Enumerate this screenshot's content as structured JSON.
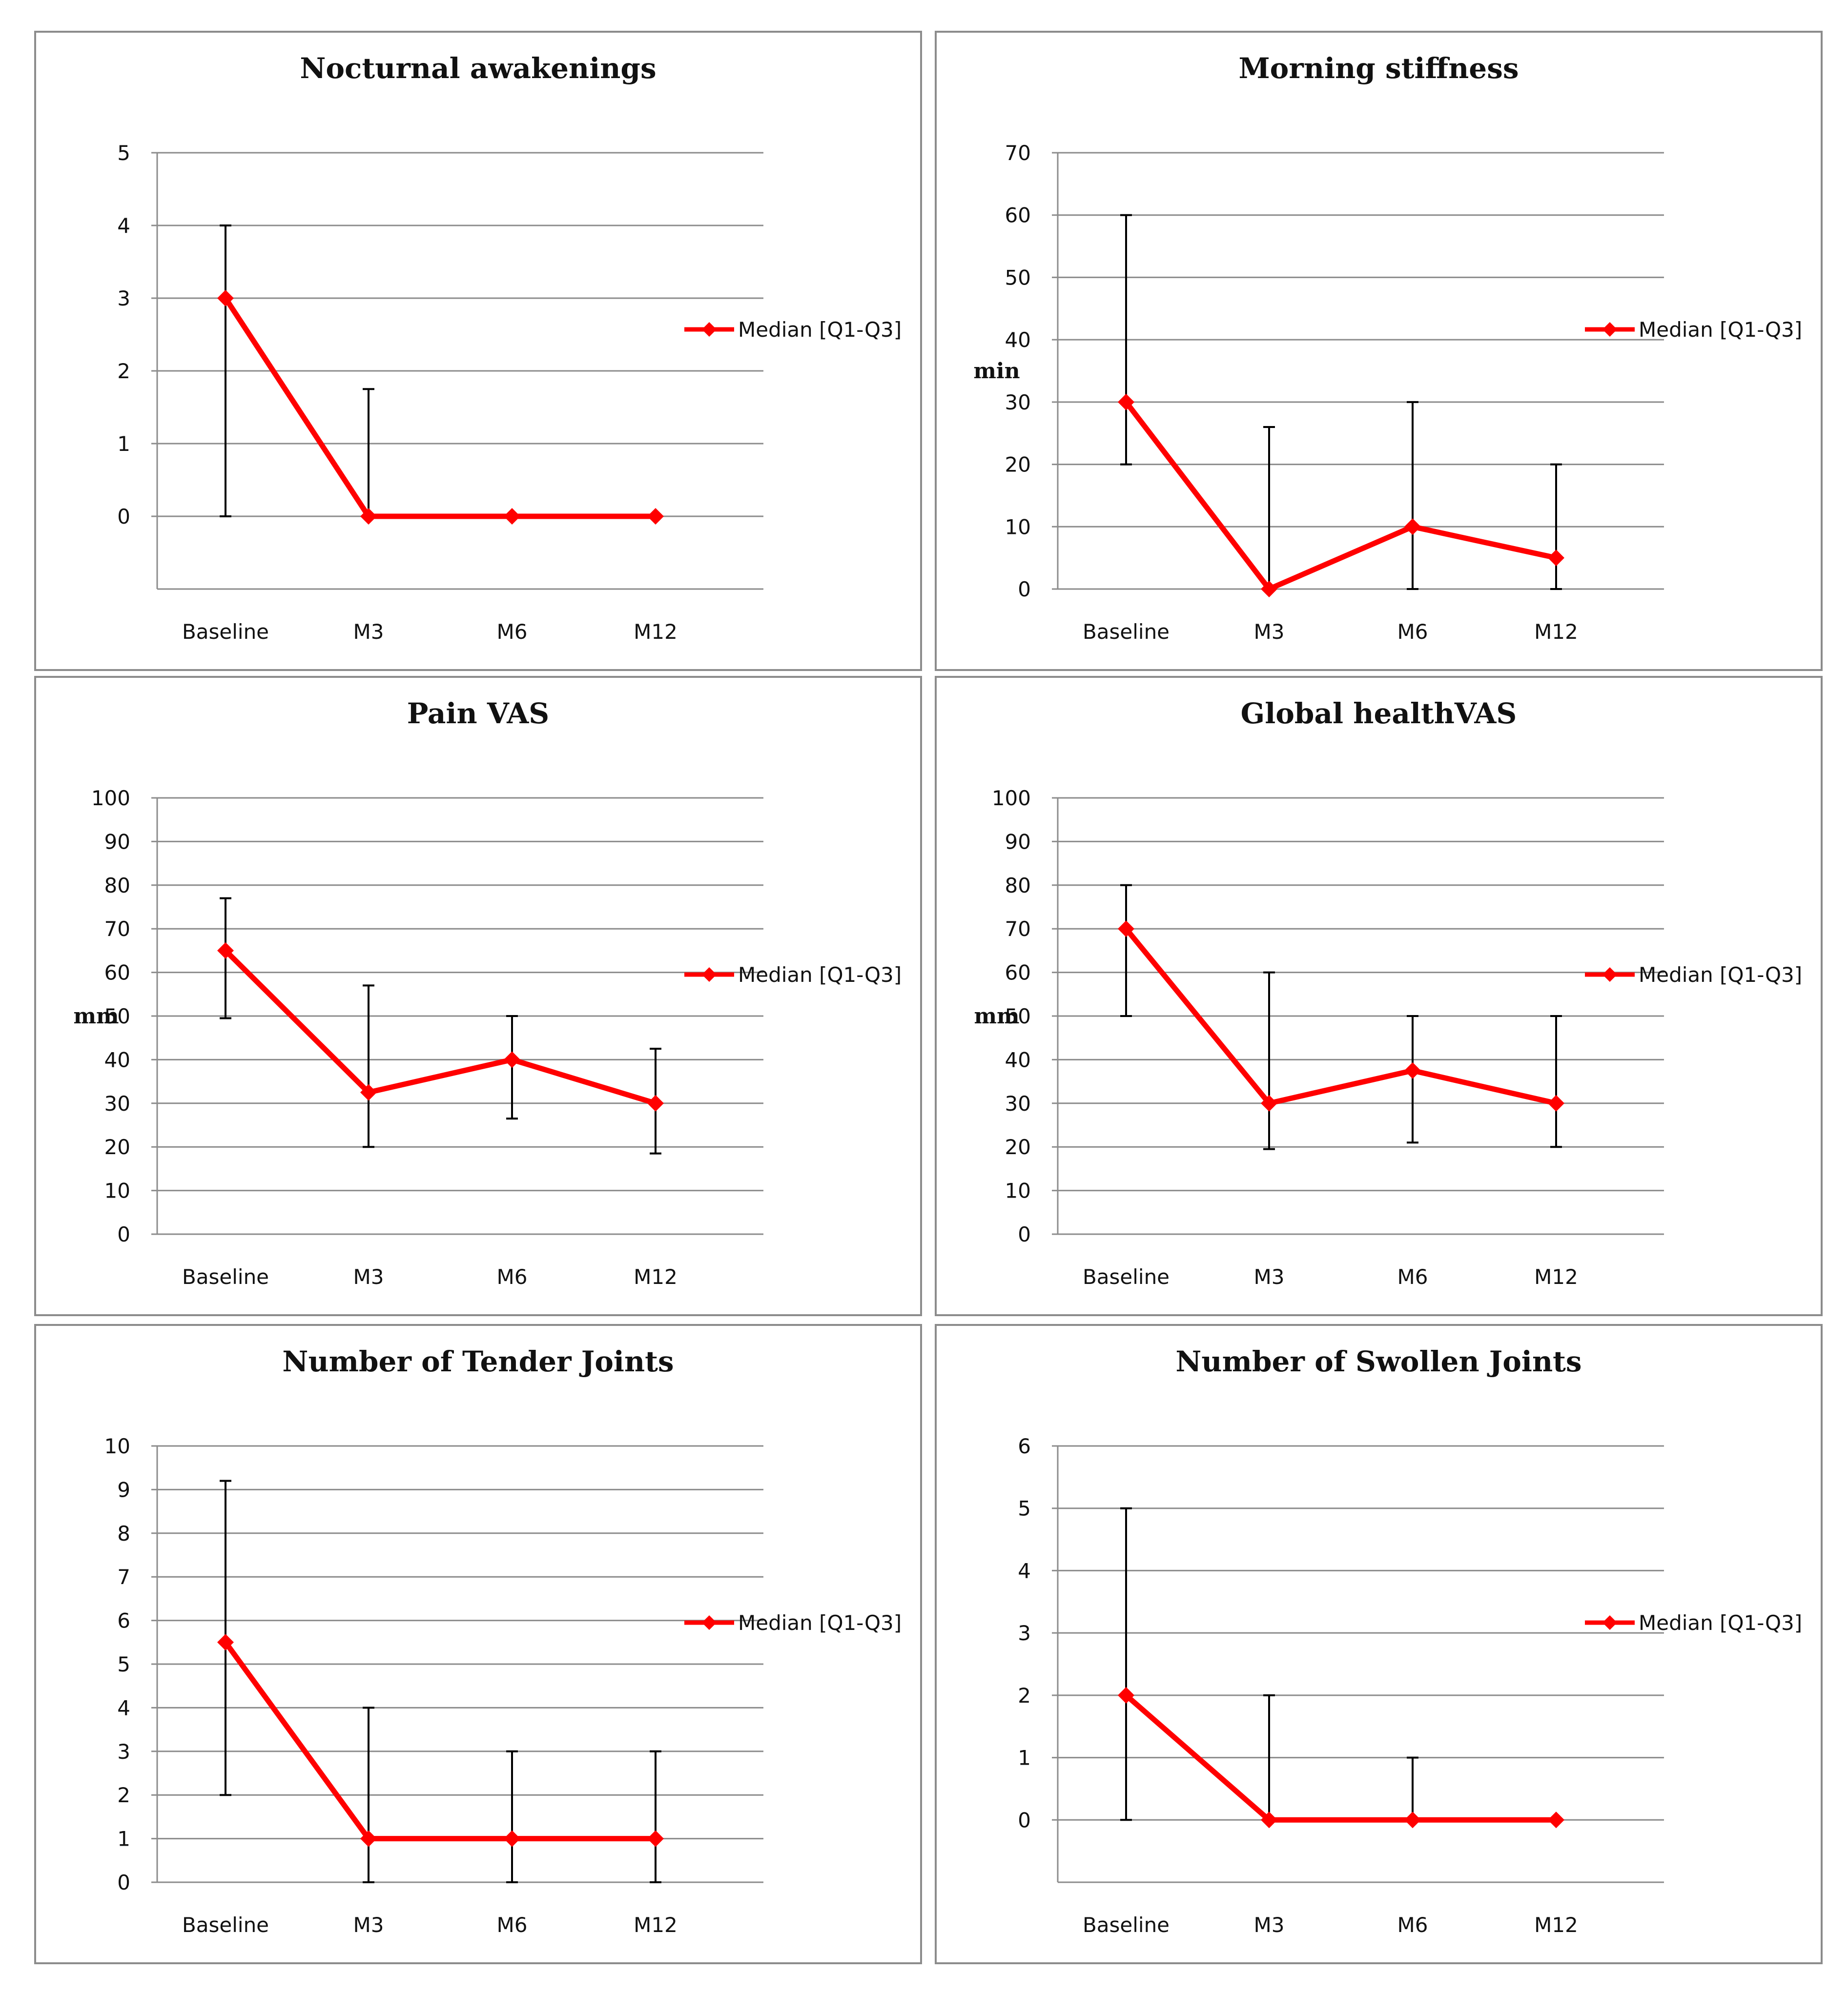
{
  "colors": {
    "series": "#ff0000",
    "errorbar": "#000000",
    "grid": "#8c8c8c"
  },
  "chart_data": [
    {
      "type": "line",
      "title": "Nocturnal awakenings",
      "ylabel": "",
      "categories": [
        "Baseline",
        "M3",
        "M6",
        "M12"
      ],
      "ylim": [
        -1,
        5
      ],
      "yticks": [
        0,
        1,
        2,
        3,
        4,
        5
      ],
      "legend": "Median [Q1-Q3]",
      "legend_position": "right",
      "series": [
        {
          "name": "Median [Q1-Q3]",
          "values": [
            3,
            0,
            0,
            0
          ],
          "q1": [
            0,
            0,
            0,
            0
          ],
          "q3": [
            4,
            1.75,
            0,
            0
          ]
        }
      ]
    },
    {
      "type": "line",
      "title": "Morning stiffness",
      "ylabel": "min",
      "categories": [
        "Baseline",
        "M3",
        "M6",
        "M12"
      ],
      "ylim": [
        0,
        70
      ],
      "yticks": [
        0,
        10,
        20,
        30,
        40,
        50,
        60,
        70
      ],
      "legend": "Median [Q1-Q3]",
      "legend_position": "right",
      "series": [
        {
          "name": "Median [Q1-Q3]",
          "values": [
            30,
            0,
            10,
            5
          ],
          "q1": [
            20,
            0,
            0,
            0
          ],
          "q3": [
            60,
            26,
            30,
            20
          ]
        }
      ]
    },
    {
      "type": "line",
      "title": "Pain VAS",
      "ylabel": "mm",
      "categories": [
        "Baseline",
        "M3",
        "M6",
        "M12"
      ],
      "ylim": [
        0,
        100
      ],
      "yticks": [
        0,
        10,
        20,
        30,
        40,
        50,
        60,
        70,
        80,
        90,
        100
      ],
      "legend": "Median [Q1-Q3]",
      "legend_position": "right",
      "series": [
        {
          "name": "Median [Q1-Q3]",
          "values": [
            65,
            32.5,
            40,
            30
          ],
          "q1": [
            49.5,
            20,
            26.5,
            18.5
          ],
          "q3": [
            77,
            57,
            50,
            42.5
          ]
        }
      ]
    },
    {
      "type": "line",
      "title": "Global healthVAS",
      "ylabel": "mm",
      "categories": [
        "Baseline",
        "M3",
        "M6",
        "M12"
      ],
      "ylim": [
        0,
        100
      ],
      "yticks": [
        0,
        10,
        20,
        30,
        40,
        50,
        60,
        70,
        80,
        90,
        100
      ],
      "legend": "Median [Q1-Q3]",
      "legend_position": "right",
      "series": [
        {
          "name": "Median [Q1-Q3]",
          "values": [
            70,
            30,
            37.5,
            30
          ],
          "q1": [
            50,
            19.5,
            21,
            20
          ],
          "q3": [
            80,
            60,
            50,
            50
          ]
        }
      ]
    },
    {
      "type": "line",
      "title": "Number of Tender Joints",
      "ylabel": "",
      "categories": [
        "Baseline",
        "M3",
        "M6",
        "M12"
      ],
      "ylim": [
        0,
        10
      ],
      "yticks": [
        0,
        1,
        2,
        3,
        4,
        5,
        6,
        7,
        8,
        9,
        10
      ],
      "legend": "Median [Q1-Q3]",
      "legend_position": "right",
      "series": [
        {
          "name": "Median [Q1-Q3]",
          "values": [
            5.5,
            1,
            1,
            1
          ],
          "q1": [
            2,
            0,
            0,
            0
          ],
          "q3": [
            9.2,
            4,
            3,
            3
          ]
        }
      ]
    },
    {
      "type": "line",
      "title": "Number of Swollen Joints",
      "ylabel": "",
      "categories": [
        "Baseline",
        "M3",
        "M6",
        "M12"
      ],
      "ylim": [
        -1,
        6
      ],
      "yticks": [
        0,
        1,
        2,
        3,
        4,
        5,
        6
      ],
      "legend": "Median [Q1-Q3]",
      "legend_position": "right",
      "series": [
        {
          "name": "Median [Q1-Q3]",
          "values": [
            2,
            0,
            0,
            0
          ],
          "q1": [
            0,
            0,
            0,
            0
          ],
          "q3": [
            5,
            2,
            1,
            0
          ]
        }
      ]
    }
  ]
}
